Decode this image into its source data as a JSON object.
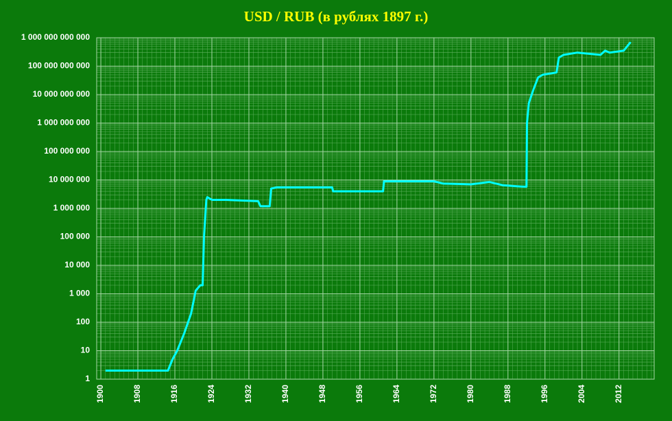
{
  "chart_data": {
    "type": "line",
    "title": "USD / RUB (в рублях 1897 г.)",
    "log_scale_y": true,
    "grid": true,
    "minor_grid": true,
    "xlim": [
      1899.1,
      2019.6
    ],
    "xticks": [
      1900,
      1908,
      1916,
      1924,
      1932,
      1940,
      1948,
      1956,
      1964,
      1972,
      1980,
      1988,
      1996,
      2004,
      2012
    ],
    "ylim": [
      1,
      1000000000000
    ],
    "yticks": [
      1,
      10,
      100,
      {
        "value": 1000,
        "label": "1 000"
      },
      {
        "value": 10000,
        "label": "10 000"
      },
      {
        "value": 100000,
        "label": "100 000"
      },
      {
        "value": 1000000,
        "label": "1 000 000"
      },
      {
        "value": 10000000,
        "label": "10 000 000"
      },
      {
        "value": 100000000,
        "label": "100 000 000"
      },
      {
        "value": 1000000000,
        "label": "1 000 000 000"
      },
      {
        "value": 10000000000,
        "label": "10 000 000 000"
      },
      {
        "value": 100000000000,
        "label": "100 000 000 000"
      },
      {
        "value": 1000000000000,
        "label": "1 000 000 000 000"
      }
    ],
    "series": [
      {
        "color": "#00ffff",
        "x": [
          1901,
          1914.5,
          1915.5,
          1916.5,
          1918,
          1919.5,
          1920.5,
          1921.5,
          1922,
          1922.3,
          1922.8,
          1923,
          1924,
          1927,
          1934,
          1934.5,
          1936.5,
          1936.8,
          1938,
          1950,
          1950.2,
          1961,
          1961.2,
          1972,
          1974,
          1980,
          1984,
          1987,
          1990,
          1991.5,
          1992,
          1992.1,
          1992.5,
          1993.5,
          1994.5,
          1995.5,
          1998.5,
          1999,
          2000,
          2003,
          2008,
          2009,
          2010,
          2013,
          2014.5
        ],
        "values": [
          2,
          2,
          5,
          10,
          40,
          200,
          1300,
          2000,
          2000,
          100000,
          2000000,
          2500000,
          2000000,
          2000000,
          1800000,
          1200000,
          1200000,
          5000000,
          5500000,
          5500000,
          4000000,
          4000000,
          9000000,
          9000000,
          7500000,
          7000000,
          8500000,
          6500000,
          6000000,
          5800000,
          5800000,
          1000000000,
          5000000000,
          15000000000,
          40000000000,
          50000000000,
          60000000000,
          200000000000,
          250000000000,
          300000000000,
          250000000000,
          350000000000,
          300000000000,
          350000000000,
          700000000000
        ]
      }
    ]
  }
}
